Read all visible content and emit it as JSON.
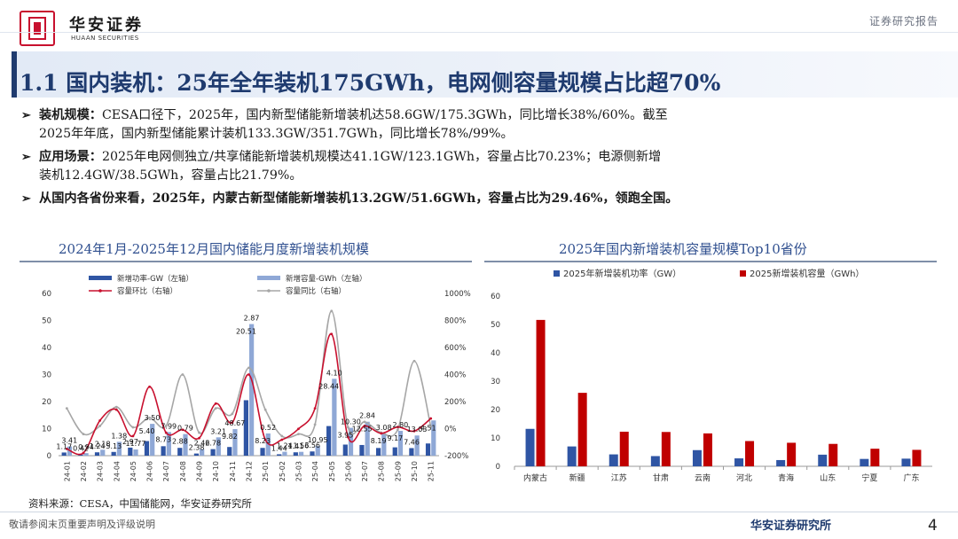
{
  "header": {
    "logo_cn": "华安证券",
    "logo_en": "HUAAN SECURITIES",
    "report_type": "证券研究报告"
  },
  "title": "1.1 国内装机：25年全年装机175GWh，电网侧容量规模占比超70%",
  "bullets": [
    {
      "mark": "➢",
      "head": "装机规模：",
      "line1": "CESA口径下，2025年，国内新型储能新增装机达58.6GW/175.3GWh，同比增长38%/60%。截至",
      "line2": "2025年年底，国内新型储能累计装机133.3GW/351.7GWh，同比增长78%/99%。"
    },
    {
      "mark": "➢",
      "head": "应用场景：",
      "line1": "2025年电网侧独立/共享储能新增装机规模达41.1GW/123.1GWh，容量占比70.23%；电源侧新增",
      "line2": "装机12.4GW/38.5GWh，容量占比21.79%。"
    },
    {
      "mark": "➢",
      "head": "",
      "line1": "从国内各省份来看，2025年，内蒙古新型储能新增装机13.2GW/51.6GWh，容量占比为29.46%，领跑全国。",
      "line2": ""
    }
  ],
  "left_section_title": "2024年1月-2025年12月国内储能月度新增装机规模",
  "right_section_title": "2025年国内新增装机容量规模Top10省份",
  "colors": {
    "navy": "#1f3b6f",
    "bar_power": "#2f55a4",
    "bar_energy": "#8fa8d6",
    "line_mom": "#c8102e",
    "line_yoy": "#a6a6a6",
    "bar_province_gw": "#2f55a4",
    "bar_province_gwh": "#c00000"
  },
  "chart_data": [
    {
      "type": "bar",
      "title": "2024年1月-2025年12月国内储能月度新增装机规模",
      "categories": [
        "24-01",
        "24-02",
        "24-03",
        "24-04",
        "24-05",
        "24-06",
        "24-07",
        "24-08",
        "24-09",
        "24-10",
        "24-11",
        "24-12",
        "25-01",
        "25-02",
        "25-03",
        "25-04",
        "25-05",
        "25-06",
        "25-07",
        "25-08",
        "25-09",
        "25-10",
        "25-11"
      ],
      "series": [
        {
          "name": "新增功率-GW（左轴）",
          "axis": "left",
          "type": "bar",
          "values": [
            1.17,
            0.42,
            1.24,
            1.38,
            2.97,
            5.4,
            3.5,
            2.88,
            0.79,
            2.42,
            3.21,
            20.51,
            2.87,
            0.52,
            1.24,
            1.56,
            10.95,
            4.1,
            3.95,
            2.84,
            3.08,
            2.8,
            4.51
          ]
        },
        {
          "name": "新增容量-GWh（左轴）",
          "axis": "left",
          "type": "bar",
          "values": [
            3.41,
            0.94,
            2.18,
            5.13,
            2.3,
            11.77,
            8.73,
            7.99,
            2.38,
            6.78,
            9.82,
            48.67,
            8.23,
            1.44,
            1.41,
            3.56,
            28.44,
            10.3,
            12.55,
            8.19,
            9.17,
            7.46,
            13.03
          ]
        },
        {
          "name": "容量环比（右轴）",
          "axis": "right",
          "type": "line",
          "values": [
            -150,
            -180,
            60,
            140,
            -55,
            310,
            -30,
            -8,
            -70,
            185,
            45,
            400,
            -83,
            -82,
            -2,
            150,
            700,
            -63,
            20,
            -35,
            12,
            -18,
            75
          ]
        },
        {
          "name": "容量同比（右轴）",
          "axis": "right",
          "type": "line",
          "values": [
            150,
            -40,
            20,
            160,
            10,
            80,
            20,
            400,
            -30,
            150,
            110,
            450,
            140,
            -55,
            -40,
            30,
            870,
            10,
            50,
            -30,
            -8,
            500,
            15
          ]
        }
      ],
      "data_labels": [
        "1.17",
        "3.41",
        "0.42",
        "0.94",
        "1.24",
        "2.18",
        "5.13",
        "1.38",
        "2.97",
        "11.77",
        "5.40",
        "3.50",
        "8.73",
        "7.99",
        "2.88",
        "0.79",
        "2.38",
        "2.42",
        "6.78",
        "3.21",
        "9.82",
        "48.67",
        "20.51",
        "2.87",
        "8.23",
        "0.52",
        "1.44",
        "1.24",
        "1.41",
        "1.56",
        "3.56",
        "10.95",
        "28.44",
        "4.10",
        "3.95",
        "10.30",
        "12.55",
        "2.84",
        "8.19",
        "3.08",
        "9.17",
        "2.80",
        "7.46",
        "13.03",
        "4.51"
      ],
      "ylim_left": [
        0,
        60
      ],
      "yticks_left": [
        "0",
        "10",
        "20",
        "30",
        "40",
        "50",
        "60"
      ],
      "ylim_right": [
        -200,
        1000
      ],
      "yticks_right": [
        "-200%",
        "0%",
        "200%",
        "400%",
        "600%",
        "800%",
        "1000%"
      ],
      "legend": "top"
    },
    {
      "type": "bar",
      "title": "2025年国内新增装机容量规模Top10省份",
      "categories": [
        "内蒙古",
        "新疆",
        "江苏",
        "甘肃",
        "云南",
        "河北",
        "青海",
        "山东",
        "宁夏",
        "广东"
      ],
      "series": [
        {
          "name": "2025年新增装机功率（GW）",
          "values": [
            13.2,
            7.0,
            4.2,
            3.6,
            5.7,
            2.8,
            2.2,
            4.1,
            2.6,
            2.7
          ]
        },
        {
          "name": "2025新增装机容量（GWh）",
          "values": [
            51.6,
            25.9,
            12.2,
            12.1,
            11.6,
            8.9,
            8.3,
            7.9,
            6.2,
            5.8
          ]
        }
      ],
      "ylim": [
        0,
        60
      ],
      "yticks": [
        "0",
        "10",
        "20",
        "30",
        "40",
        "50",
        "60"
      ],
      "legend": "top"
    }
  ],
  "footer": {
    "source": "资料来源：CESA，中国储能网，华安证券研究所",
    "disclaimer": "敬请参阅末页重要声明及评级说明",
    "brand": "华安证券研究所",
    "page_number": "4"
  }
}
